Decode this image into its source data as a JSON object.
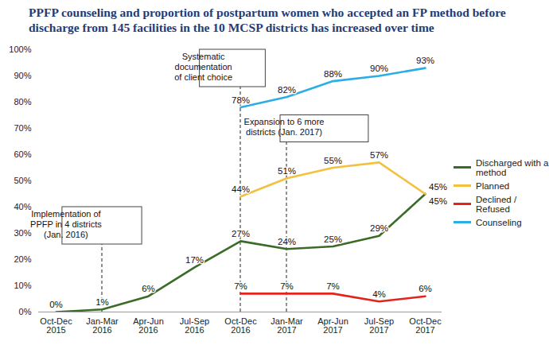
{
  "chart_data": {
    "type": "line",
    "title": "PPFP counseling and proportion of postpartum women who accepted an FP method before discharge from 145 facilities in the 10 MCSP districts has increased over time",
    "categories": [
      "Oct-Dec 2015",
      "Jan-Mar 2016",
      "Apr-Jun 2016",
      "Jul-Sep 2016",
      "Oct-Dec 2016",
      "Jan-Mar 2017",
      "Apr-Jun 2017",
      "Jul-Sep 2017",
      "Oct-Dec 2017"
    ],
    "series": [
      {
        "name": "Discharged with a method",
        "color": "#3a6b27",
        "values": [
          0,
          1,
          6,
          17,
          27,
          24,
          25,
          29,
          45
        ],
        "value_labels": [
          "0%",
          "1%",
          "6%",
          "17%",
          "27%",
          "24%",
          "25%",
          "29%",
          "45%"
        ]
      },
      {
        "name": "Planned",
        "color": "#f3c13f",
        "values": [
          null,
          null,
          null,
          null,
          44,
          51,
          55,
          57,
          45
        ],
        "value_labels": [
          null,
          null,
          null,
          null,
          "44%",
          "51%",
          "55%",
          "57%",
          "45%"
        ]
      },
      {
        "name": "Declined / Refused",
        "color": "#e3231c",
        "values": [
          null,
          null,
          null,
          null,
          7,
          7,
          7,
          4,
          6
        ],
        "value_labels": [
          null,
          null,
          null,
          null,
          "7%",
          "7%",
          "7%",
          "4%",
          "6%"
        ]
      },
      {
        "name": "Counseling",
        "color": "#2aaee3",
        "values": [
          null,
          null,
          null,
          null,
          78,
          82,
          88,
          90,
          93
        ],
        "value_labels": [
          null,
          null,
          null,
          null,
          "78%",
          "82%",
          "88%",
          "90%",
          "93%"
        ]
      }
    ],
    "ylim": [
      0,
      100
    ],
    "yticks": [
      {
        "value": 0,
        "label": "0%"
      },
      {
        "value": 10,
        "label": "10%"
      },
      {
        "value": 20,
        "label": "20%"
      },
      {
        "value": 30,
        "label": "30%"
      },
      {
        "value": 40,
        "label": "40%"
      },
      {
        "value": 50,
        "label": "50%"
      },
      {
        "value": 60,
        "label": "60%"
      },
      {
        "value": 70,
        "label": "70%"
      },
      {
        "value": 80,
        "label": "80%"
      },
      {
        "value": 90,
        "label": "90%"
      },
      {
        "value": 100,
        "label": "100%"
      }
    ],
    "annotations": [
      {
        "text": "Implementation of\nPPFP in 4 districts\n(Jan. 2016)",
        "x": "Jan-Mar 2016"
      },
      {
        "text": "Systematic\ndocumentation\nof client choice",
        "x": "Oct-Dec 2016"
      },
      {
        "text": "Expansion to 6 more\ndistricts (Jan. 2017)",
        "x": "Jan-Mar 2017"
      }
    ],
    "data_labels": true,
    "legend": "right",
    "grid": false
  }
}
